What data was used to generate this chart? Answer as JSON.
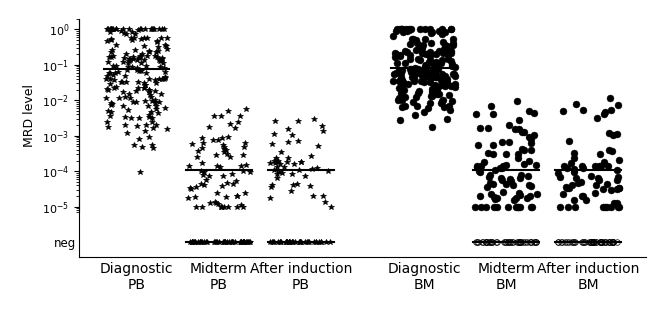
{
  "categories": [
    [
      "Diagnostic",
      "PB"
    ],
    [
      "Midterm",
      "PB"
    ],
    [
      "After induction",
      "PB"
    ],
    [
      "Diagnostic",
      "BM"
    ],
    [
      "Midterm",
      "BM"
    ],
    [
      "After induction",
      "BM"
    ]
  ],
  "medians": [
    0.075,
    0.00011,
    0.00011,
    0.08,
    0.00011,
    0.00011
  ],
  "ylabel": "MRD level",
  "neg_label": "neg",
  "x_positions": [
    1,
    2,
    3,
    4.5,
    5.5,
    6.5
  ],
  "xlim": [
    0.3,
    7.2
  ],
  "seed": 42,
  "group_params": [
    [
      190,
      -1.15,
      1.1,
      0,
      "*",
      true
    ],
    [
      75,
      -3.95,
      0.85,
      50,
      "*",
      true
    ],
    [
      50,
      -3.95,
      0.75,
      38,
      "*",
      true
    ],
    [
      190,
      -1.1,
      0.75,
      0,
      "o",
      true
    ],
    [
      85,
      -3.95,
      1.0,
      42,
      "o",
      true
    ],
    [
      70,
      -3.95,
      0.9,
      48,
      "o",
      true
    ]
  ]
}
